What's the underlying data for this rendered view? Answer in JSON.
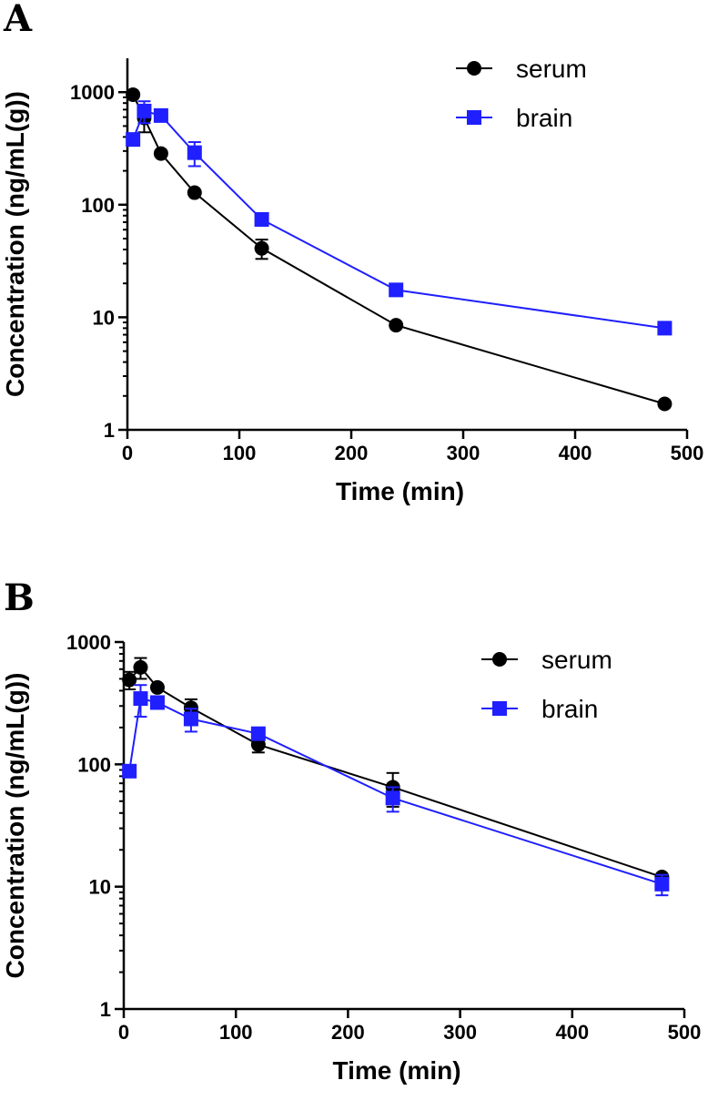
{
  "chart_data": [
    {
      "panel": "A",
      "type": "line",
      "xlabel": "Time (min)",
      "ylabel": "Concentration (ng/mL(g))",
      "xscale": "linear",
      "yscale": "log",
      "xlim": [
        0,
        500
      ],
      "ylim": [
        1,
        2000
      ],
      "xticks": [
        0,
        100,
        200,
        300,
        400,
        500
      ],
      "yticks": [
        1,
        10,
        100,
        1000
      ],
      "legend_position": "top-right",
      "series": [
        {
          "name": "serum",
          "color": "#000000",
          "marker": "circle",
          "points": [
            {
              "x": 5,
              "y": 950,
              "err": 0
            },
            {
              "x": 15,
              "y": 590,
              "err": 150
            },
            {
              "x": 30,
              "y": 285,
              "err": 0
            },
            {
              "x": 60,
              "y": 128,
              "err": 0
            },
            {
              "x": 120,
              "y": 41,
              "err": 8
            },
            {
              "x": 240,
              "y": 8.5,
              "err": 0
            },
            {
              "x": 480,
              "y": 1.7,
              "err": 0
            }
          ]
        },
        {
          "name": "brain",
          "color": "#1f1fff",
          "marker": "square",
          "points": [
            {
              "x": 5,
              "y": 380,
              "err": 0
            },
            {
              "x": 15,
              "y": 680,
              "err": 150
            },
            {
              "x": 30,
              "y": 620,
              "err": 0
            },
            {
              "x": 60,
              "y": 290,
              "err": 70
            },
            {
              "x": 120,
              "y": 74,
              "err": 0
            },
            {
              "x": 240,
              "y": 17.5,
              "err": 0
            },
            {
              "x": 480,
              "y": 8,
              "err": 0
            }
          ]
        }
      ]
    },
    {
      "panel": "B",
      "type": "line",
      "xlabel": "Time (min)",
      "ylabel": "Concentration (ng/mL(g))",
      "xscale": "linear",
      "yscale": "log",
      "xlim": [
        0,
        500
      ],
      "ylim": [
        1,
        1000
      ],
      "xticks": [
        0,
        100,
        200,
        300,
        400,
        500
      ],
      "yticks": [
        1,
        10,
        100,
        1000
      ],
      "legend_position": "top-right",
      "series": [
        {
          "name": "serum",
          "color": "#000000",
          "marker": "circle",
          "points": [
            {
              "x": 5,
              "y": 490,
              "err": 80
            },
            {
              "x": 15,
              "y": 620,
              "err": 120
            },
            {
              "x": 30,
              "y": 425,
              "err": 0
            },
            {
              "x": 60,
              "y": 290,
              "err": 50
            },
            {
              "x": 120,
              "y": 145,
              "err": 20
            },
            {
              "x": 240,
              "y": 65,
              "err": 20
            },
            {
              "x": 480,
              "y": 12,
              "err": 0
            }
          ]
        },
        {
          "name": "brain",
          "color": "#1f1fff",
          "marker": "square",
          "points": [
            {
              "x": 5,
              "y": 88,
              "err": 0
            },
            {
              "x": 15,
              "y": 345,
              "err": 100
            },
            {
              "x": 30,
              "y": 320,
              "err": 0
            },
            {
              "x": 60,
              "y": 235,
              "err": 50
            },
            {
              "x": 120,
              "y": 178,
              "err": 0
            },
            {
              "x": 240,
              "y": 53,
              "err": 12
            },
            {
              "x": 480,
              "y": 10.5,
              "err": 2
            }
          ]
        }
      ]
    }
  ]
}
